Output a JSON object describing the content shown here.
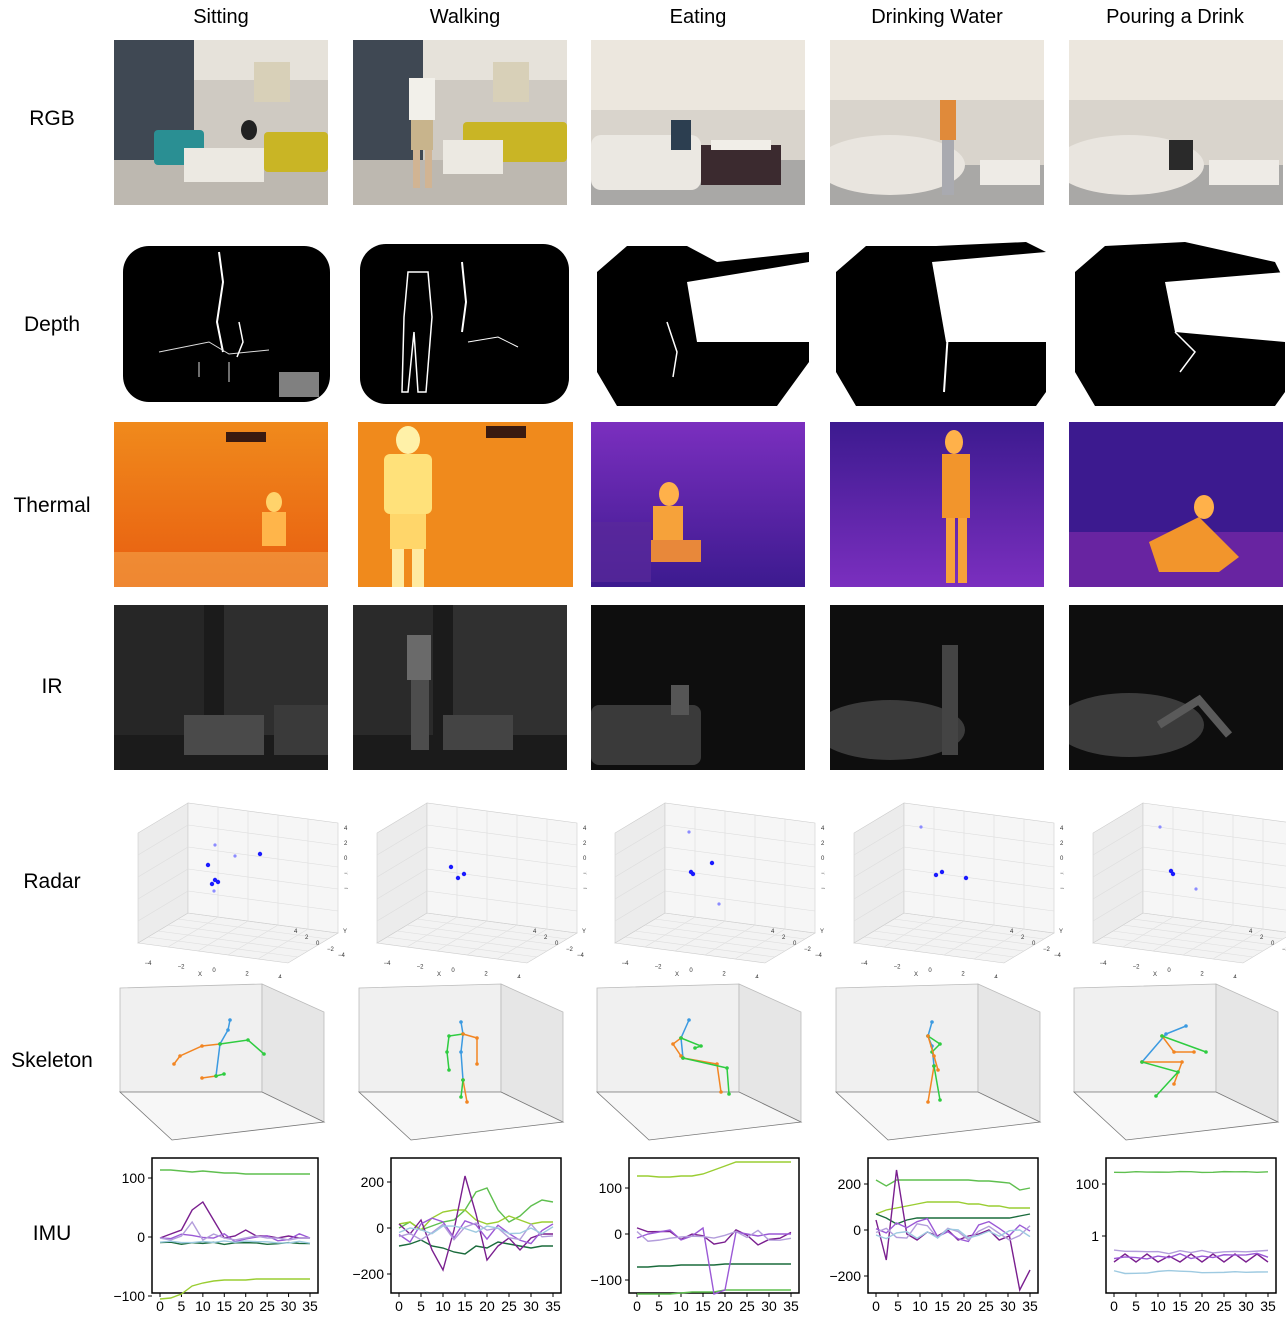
{
  "columns": [
    "Sitting",
    "Walking",
    "Eating",
    "Drinking Water",
    "Pouring a Drink"
  ],
  "rows": [
    "RGB",
    "Depth",
    "Thermal",
    "IR",
    "Radar",
    "Skeleton",
    "IMU"
  ],
  "radar_axes": {
    "x_label": "X",
    "y_label": "Y",
    "z_label": "Z",
    "x_ticks": [
      "−4",
      "−2",
      "0",
      "2",
      "4"
    ],
    "y_ticks": [
      "−4",
      "−2",
      "0",
      "2",
      "4"
    ],
    "z_ticks": [
      "4",
      "2",
      "0",
      "−2",
      "−4"
    ]
  },
  "imu_x_ticks": [
    0,
    5,
    10,
    15,
    20,
    25,
    30,
    35
  ],
  "imu_y_ticks": [
    [
      "100",
      "0",
      "−100"
    ],
    [
      "200",
      "0",
      "−200"
    ],
    [
      "100",
      "0",
      "−100"
    ],
    [
      "200",
      "0",
      "−200"
    ],
    [
      "100",
      "1"
    ]
  ],
  "colors": {
    "radar_point": "#1a1aff",
    "radar_point_faint": "#8c8cff",
    "skeleton_orange": "#f28522",
    "skeleton_blue": "#3b9ae1",
    "skeleton_green": "#2ecc40",
    "imu_green": "#5fbf4f",
    "imu_lime": "#9acd32",
    "imu_dark_green": "#1a6b3c",
    "imu_purple": "#7a1f8f",
    "imu_violet": "#9b59d6",
    "imu_lavender": "#b39ddb",
    "imu_light_blue": "#9ecae1",
    "thermal_warm": "#ff8c1a",
    "thermal_cool": "#3c1a8f"
  }
}
